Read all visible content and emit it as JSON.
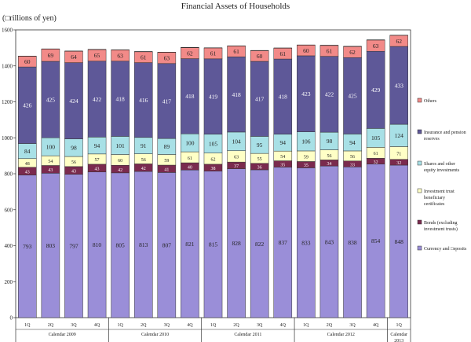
{
  "chart_data": {
    "type": "bar",
    "stacked": true,
    "title": "Financial Assets of Households",
    "ylabel": "(□rillions of yen)",
    "ylim": [
      0,
      1600
    ],
    "yticks": [
      0,
      200,
      400,
      600,
      800,
      1000,
      1200,
      1400,
      1600
    ],
    "categories": [
      "1Q",
      "2Q",
      "3Q",
      "4Q",
      "1Q",
      "2Q",
      "3Q",
      "4Q",
      "1Q",
      "2Q",
      "3Q",
      "4Q",
      "1Q",
      "2Q",
      "3Q",
      "4Q",
      "1Q"
    ],
    "groups": [
      {
        "label": "Calendar 2009",
        "count": 4
      },
      {
        "label": "Calendar 2010",
        "count": 4
      },
      {
        "label": "Calendar 2011",
        "count": 4
      },
      {
        "label": "Calendar 2012",
        "count": 4
      },
      {
        "label": "Calendar\n2013",
        "count": 1
      }
    ],
    "series": [
      {
        "name": "Currency and □eposits",
        "color": "#9a8ed8",
        "values": [
          793,
          803,
          797,
          810,
          805,
          813,
          807,
          821,
          815,
          828,
          822,
          837,
          833,
          843,
          838,
          854,
          848
        ]
      },
      {
        "name": "Bonds (excluding investment trusts)",
        "color": "#7a2a4e",
        "values": [
          43,
          43,
          43,
          43,
          42,
          42,
          41,
          40,
          38,
          37,
          36,
          35,
          35,
          34,
          33,
          32,
          32
        ]
      },
      {
        "name": "Investment trust beneficiary certificates",
        "color": "#ffffc6",
        "values": [
          48,
          54,
          56,
          57,
          60,
          56,
          59,
          61,
          62,
          63,
          55,
          54,
          59,
          56,
          56,
          61,
          71
        ]
      },
      {
        "name": "Shares and other equity investments",
        "color": "#a8e0e6",
        "values": [
          84,
          100,
          98,
          94,
          101,
          91,
          89,
          100,
          105,
          104,
          95,
          94,
          106,
          98,
          94,
          105,
          124
        ]
      },
      {
        "name": "Insurance and pension reserves",
        "color": "#5e5898",
        "values": [
          426,
          425,
          424,
          422,
          418,
          416,
          417,
          418,
          419,
          418,
          417,
          418,
          423,
          422,
          425,
          429,
          433
        ]
      },
      {
        "name": "Others",
        "color": "#f28a88",
        "values": [
          60,
          69,
          64,
          65,
          63,
          61,
          63,
          62,
          61,
          61,
          60,
          61,
          60,
          61,
          62,
          63,
          62
        ]
      }
    ],
    "legend_position": "right"
  }
}
